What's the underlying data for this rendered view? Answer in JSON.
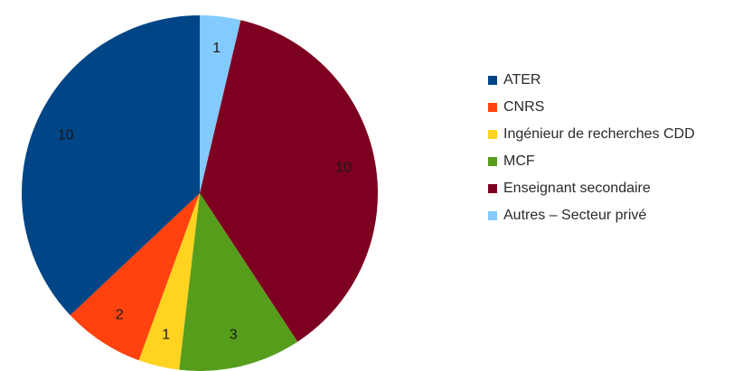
{
  "chart_data": {
    "type": "pie",
    "title": "",
    "legend_position": "right",
    "slices": [
      {
        "label": "Autres – Secteur privé",
        "value": 1,
        "color": "#83caff"
      },
      {
        "label": "Enseignant secondaire",
        "value": 10,
        "color": "#7e0021"
      },
      {
        "label": "MCF",
        "value": 3,
        "color": "#579d1c"
      },
      {
        "label": "Ingénieur de recherches CDD",
        "value": 1,
        "color": "#ffd320"
      },
      {
        "label": "CNRS",
        "value": 2,
        "color": "#ff420e"
      },
      {
        "label": "ATER",
        "value": 10,
        "color": "#004586"
      }
    ],
    "legend_order": [
      "ATER",
      "CNRS",
      "Ingénieur de recherches CDD",
      "MCF",
      "Enseignant secondaire",
      "Autres – Secteur privé"
    ]
  }
}
